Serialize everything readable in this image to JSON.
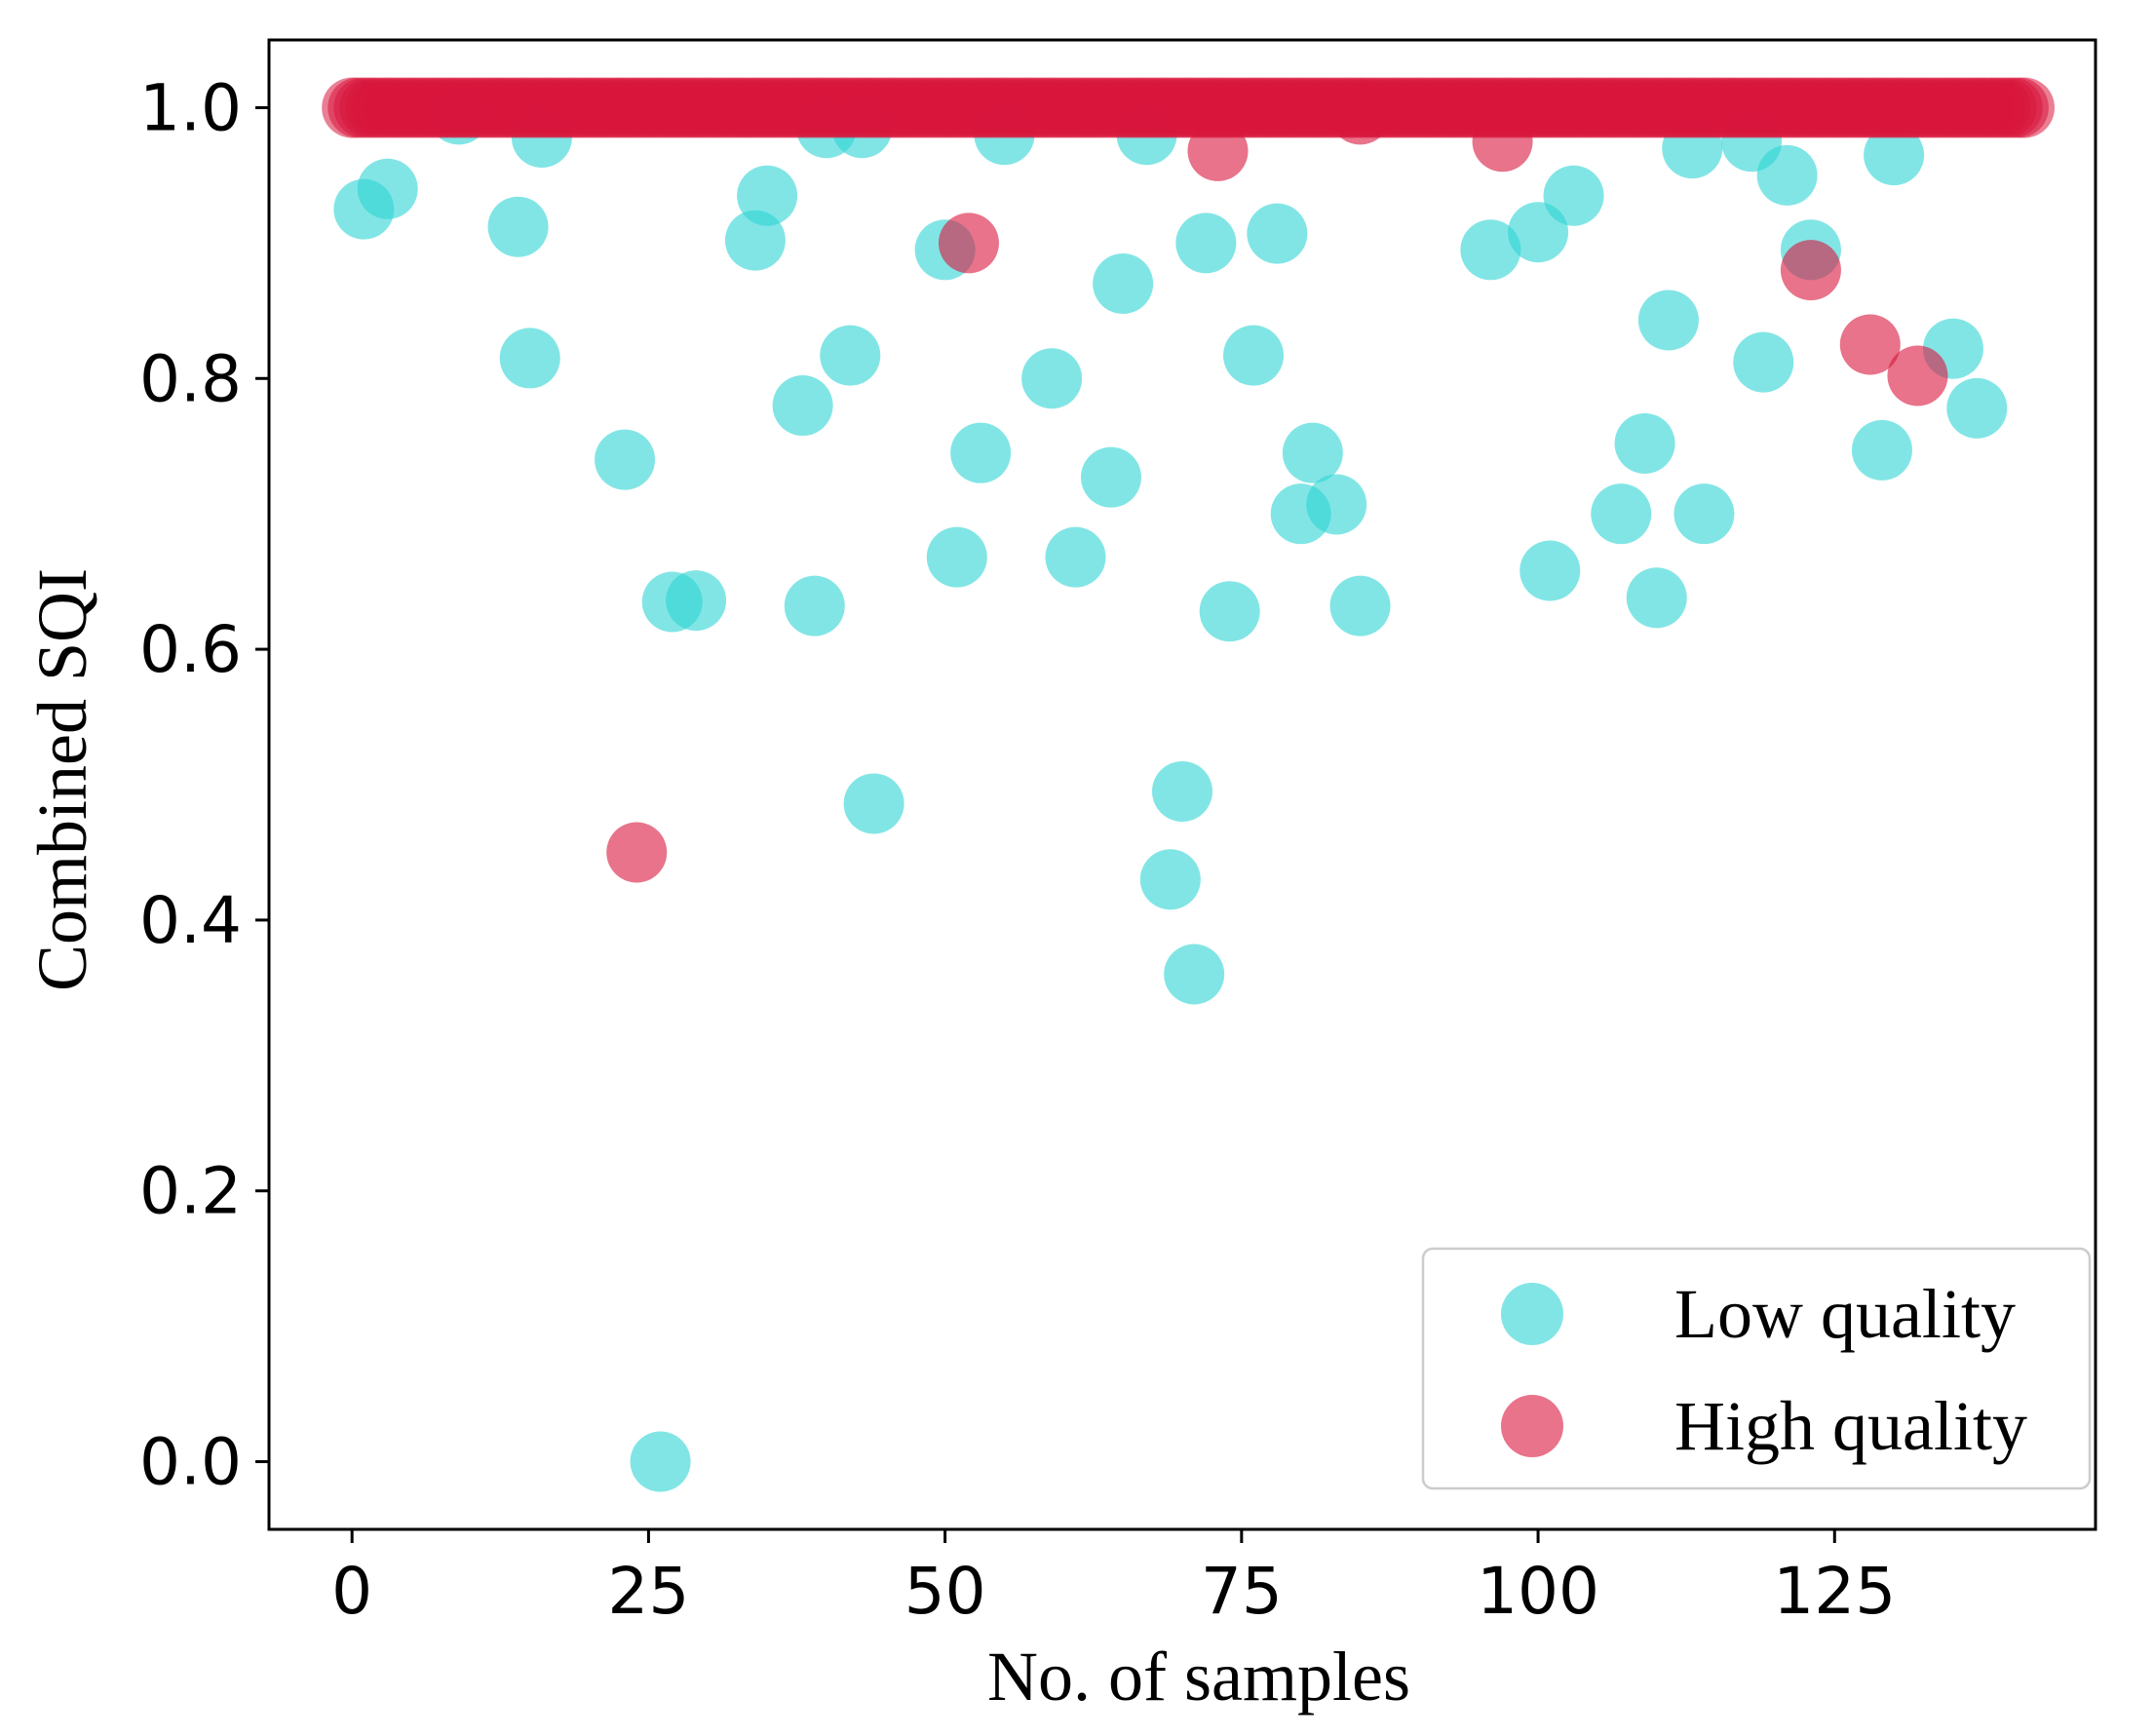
{
  "chart_data": {
    "type": "scatter",
    "title": "",
    "xlabel": "No. of samples",
    "ylabel": "Combined SQI",
    "xlim": [
      -7,
      147
    ],
    "ylim": [
      -0.05,
      1.05
    ],
    "xticks": [
      0,
      25,
      50,
      75,
      100,
      125
    ],
    "xtick_labels": [
      "0",
      "25",
      "50",
      "75",
      "100",
      "125"
    ],
    "yticks": [
      0.0,
      0.2,
      0.4,
      0.6,
      0.8,
      1.0
    ],
    "ytick_labels": [
      "0.0",
      "0.2",
      "0.4",
      "0.6",
      "0.8",
      "1.0"
    ],
    "legend_location": "bottom-right",
    "series": [
      {
        "name": "Low quality",
        "color": "#2ed3d3",
        "points": [
          [
            1,
            0.925
          ],
          [
            3,
            0.94
          ],
          [
            9,
            0.995
          ],
          [
            14,
            0.912
          ],
          [
            15,
            0.815
          ],
          [
            16,
            0.978
          ],
          [
            23,
            0.74
          ],
          [
            27,
            0.635
          ],
          [
            29,
            0.636
          ],
          [
            34,
            0.902
          ],
          [
            35,
            0.935
          ],
          [
            38,
            0.78
          ],
          [
            39,
            0.632
          ],
          [
            40,
            0.985
          ],
          [
            42,
            0.817
          ],
          [
            43,
            0.985
          ],
          [
            44,
            0.486
          ],
          [
            50,
            0.895
          ],
          [
            51,
            0.668
          ],
          [
            53,
            0.745
          ],
          [
            55,
            0.98
          ],
          [
            59,
            0.8
          ],
          [
            61,
            0.668
          ],
          [
            64,
            0.727
          ],
          [
            65,
            0.87
          ],
          [
            67,
            0.98
          ],
          [
            69,
            0.43
          ],
          [
            70,
            0.495
          ],
          [
            71,
            0.36
          ],
          [
            72,
            0.9
          ],
          [
            74,
            0.628
          ],
          [
            76,
            0.817
          ],
          [
            78,
            0.907
          ],
          [
            80,
            0.7
          ],
          [
            81,
            0.745
          ],
          [
            83,
            0.707
          ],
          [
            85,
            0.632
          ],
          [
            96,
            0.895
          ],
          [
            100,
            0.908
          ],
          [
            101,
            0.658
          ],
          [
            103,
            0.935
          ],
          [
            107,
            0.7
          ],
          [
            109,
            0.752
          ],
          [
            110,
            0.638
          ],
          [
            111,
            0.843
          ],
          [
            113,
            0.97
          ],
          [
            114,
            0.7
          ],
          [
            118,
            0.975
          ],
          [
            119,
            0.812
          ],
          [
            121,
            0.95
          ],
          [
            123,
            0.895
          ],
          [
            129,
            0.747
          ],
          [
            130,
            0.965
          ],
          [
            135,
            0.822
          ],
          [
            137,
            0.778
          ],
          [
            26,
            0.0
          ]
        ]
      },
      {
        "name": "High quality",
        "color": "#d9163c",
        "points": [
          [
            24,
            0.45
          ],
          [
            52,
            0.9
          ],
          [
            73,
            0.968
          ],
          [
            85,
            0.995
          ],
          [
            97,
            0.975
          ],
          [
            123,
            0.88
          ],
          [
            128,
            0.825
          ],
          [
            132,
            0.802
          ]
        ],
        "line_at_one": {
          "y": 1.0,
          "x_from": 0,
          "x_to": 141,
          "step": 0.5
        }
      }
    ]
  }
}
